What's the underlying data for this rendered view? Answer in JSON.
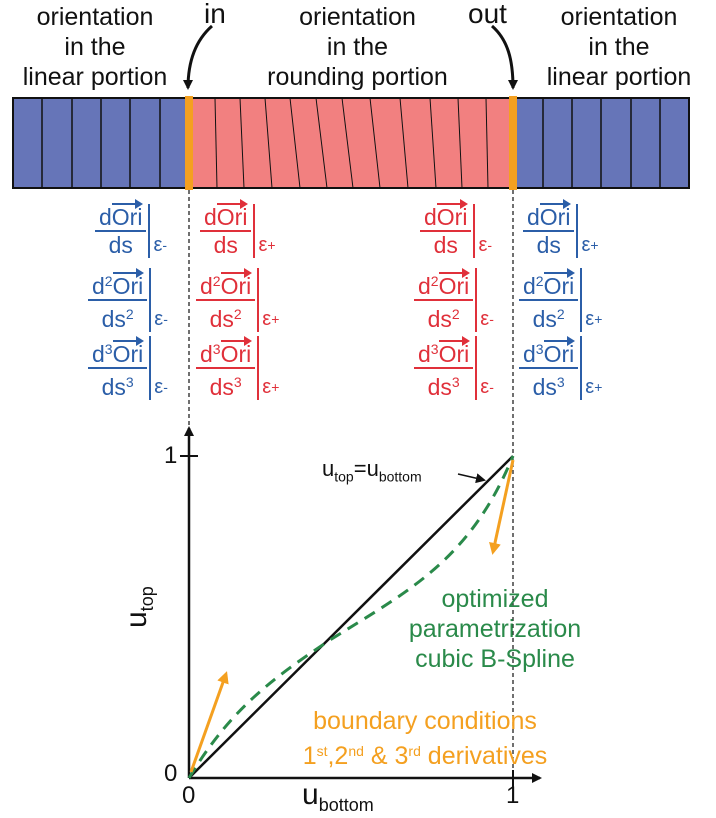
{
  "top_labels": {
    "left": [
      "orientation",
      "in the",
      "linear portion"
    ],
    "middle": [
      "orientation",
      "in the",
      "rounding portion"
    ],
    "right": [
      "orientation",
      "in the",
      "linear portion"
    ],
    "in": "in",
    "out": "out"
  },
  "derivatives": {
    "first": {
      "num_pre": "d",
      "num_vec": "Ori",
      "den": "ds"
    },
    "second": {
      "num_pre": "d",
      "num_sup": "2",
      "num_vec": "Ori",
      "den": "ds",
      "den_sup": "2"
    },
    "third": {
      "num_pre": "d",
      "num_sup": "3",
      "num_vec": "Ori",
      "den": "ds",
      "den_sup": "3"
    },
    "eps": "ε",
    "minus": "-",
    "plus": "+"
  },
  "plot": {
    "y_axis_label": "u",
    "y_axis_sub": "top",
    "x_axis_label": "u",
    "x_axis_sub": "bottom",
    "tick_0": "0",
    "tick_1": "1",
    "tick_y0": "0",
    "tick_y1": "1",
    "identity_label_u": "u",
    "identity_label_top": "top",
    "identity_label_eq": "=u",
    "identity_label_bottom": "bottom",
    "spline_label": [
      "optimized",
      "parametrization",
      "cubic B-Spline"
    ],
    "boundary_label_line1": "boundary conditions",
    "boundary_1": "1",
    "boundary_1_sup": "st",
    "boundary_2": ",2",
    "boundary_2_sup": "nd",
    "boundary_3": " & 3",
    "boundary_3_sup": "rd",
    "boundary_tail": " derivatives"
  },
  "colors": {
    "blue_block": "#6675b8",
    "red_block": "#f28080",
    "orange": "#f4a020",
    "blue_text": "#2b5ea8",
    "red_text": "#e0303a",
    "green": "#2a8a4a"
  }
}
